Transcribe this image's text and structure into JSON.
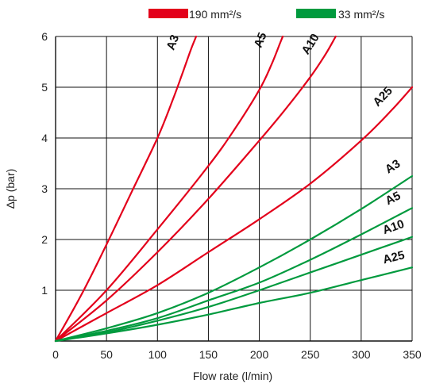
{
  "chart_data": {
    "type": "line",
    "xlabel": "Flow rate  (l/min)",
    "ylabel": "Δp (bar)",
    "xlim": [
      0,
      350
    ],
    "ylim": [
      0,
      6
    ],
    "x_ticks": [
      0,
      50,
      100,
      150,
      200,
      250,
      300,
      350
    ],
    "y_ticks": [
      1,
      2,
      3,
      4,
      5,
      6
    ],
    "x_tick_labels": [
      "0",
      "50",
      "100",
      "150",
      "200",
      "250",
      "300",
      "350"
    ],
    "y_tick_labels": [
      "1",
      "2",
      "3",
      "4",
      "5",
      "6"
    ],
    "grid": true,
    "legend": {
      "position": "top",
      "entries": [
        {
          "label": "190 mm²/s",
          "color": "#e3001b"
        },
        {
          "label": "33 mm²/s",
          "color": "#009a3e"
        }
      ]
    },
    "series": [
      {
        "name": "A3",
        "group": "190 mm²/s",
        "color": "#e3001b",
        "points": [
          [
            0,
            0
          ],
          [
            25,
            0.9
          ],
          [
            50,
            1.9
          ],
          [
            75,
            2.95
          ],
          [
            100,
            4.0
          ],
          [
            115,
            4.75
          ],
          [
            125,
            5.3
          ],
          [
            133,
            5.75
          ],
          [
            138,
            6.0
          ]
        ]
      },
      {
        "name": "A5",
        "group": "190 mm²/s",
        "color": "#e3001b",
        "points": [
          [
            0,
            0
          ],
          [
            50,
            1.0
          ],
          [
            100,
            2.2
          ],
          [
            150,
            3.45
          ],
          [
            175,
            4.15
          ],
          [
            200,
            4.95
          ],
          [
            212,
            5.45
          ],
          [
            220,
            5.85
          ],
          [
            223,
            6.0
          ]
        ]
      },
      {
        "name": "A10",
        "group": "190 mm²/s",
        "color": "#e3001b",
        "points": [
          [
            0,
            0
          ],
          [
            50,
            0.8
          ],
          [
            100,
            1.75
          ],
          [
            150,
            2.8
          ],
          [
            200,
            3.95
          ],
          [
            225,
            4.55
          ],
          [
            250,
            5.2
          ],
          [
            265,
            5.65
          ],
          [
            275,
            6.0
          ]
        ]
      },
      {
        "name": "A25",
        "group": "190 mm²/s",
        "color": "#e3001b",
        "points": [
          [
            0,
            0
          ],
          [
            50,
            0.55
          ],
          [
            100,
            1.1
          ],
          [
            150,
            1.75
          ],
          [
            200,
            2.4
          ],
          [
            250,
            3.1
          ],
          [
            300,
            3.95
          ],
          [
            330,
            4.55
          ],
          [
            350,
            5.0
          ]
        ]
      },
      {
        "name": "A3",
        "group": "33 mm²/s",
        "color": "#009a3e",
        "points": [
          [
            0,
            0
          ],
          [
            50,
            0.25
          ],
          [
            100,
            0.55
          ],
          [
            150,
            0.95
          ],
          [
            200,
            1.45
          ],
          [
            250,
            2.0
          ],
          [
            300,
            2.6
          ],
          [
            350,
            3.25
          ]
        ]
      },
      {
        "name": "A5",
        "group": "33 mm²/s",
        "color": "#009a3e",
        "points": [
          [
            0,
            0
          ],
          [
            50,
            0.2
          ],
          [
            100,
            0.45
          ],
          [
            150,
            0.8
          ],
          [
            200,
            1.15
          ],
          [
            250,
            1.6
          ],
          [
            300,
            2.1
          ],
          [
            350,
            2.62
          ]
        ]
      },
      {
        "name": "A10",
        "group": "33 mm²/s",
        "color": "#009a3e",
        "points": [
          [
            0,
            0
          ],
          [
            50,
            0.17
          ],
          [
            100,
            0.4
          ],
          [
            150,
            0.67
          ],
          [
            200,
            1.0
          ],
          [
            250,
            1.35
          ],
          [
            300,
            1.7
          ],
          [
            350,
            2.05
          ]
        ]
      },
      {
        "name": "A25",
        "group": "33 mm²/s",
        "color": "#009a3e",
        "points": [
          [
            0,
            0
          ],
          [
            50,
            0.15
          ],
          [
            100,
            0.32
          ],
          [
            150,
            0.52
          ],
          [
            200,
            0.75
          ],
          [
            250,
            0.95
          ],
          [
            300,
            1.2
          ],
          [
            350,
            1.45
          ]
        ]
      }
    ]
  }
}
